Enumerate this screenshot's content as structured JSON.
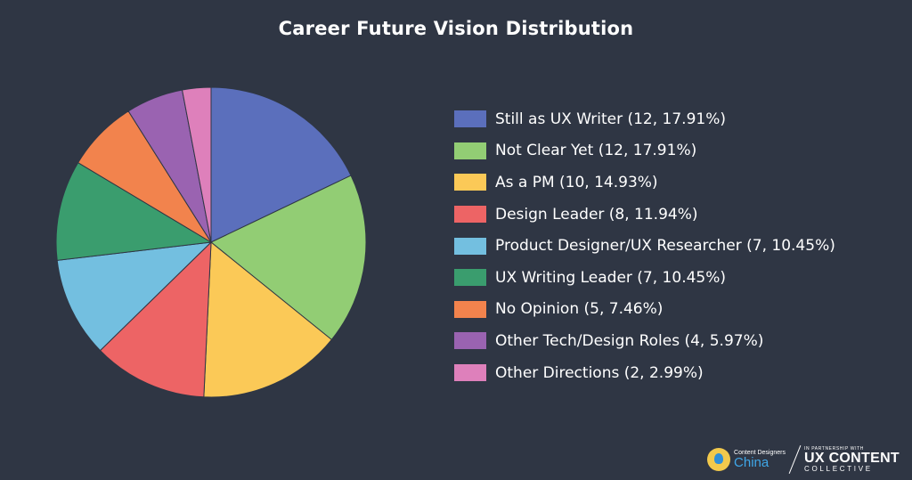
{
  "chart_data": {
    "type": "pie",
    "title": "Career Future Vision Distribution",
    "categories": [
      "Still as UX Writer",
      "Not Clear Yet",
      "As a PM",
      "Design Leader",
      "Product Designer/UX Researcher",
      "UX Writing Leader",
      "No Opinion",
      "Other Tech/Design Roles",
      "Other Directions"
    ],
    "values": [
      12,
      12,
      10,
      8,
      7,
      7,
      5,
      4,
      2
    ],
    "percentages": [
      17.91,
      17.91,
      14.93,
      11.94,
      10.45,
      10.45,
      7.46,
      5.97,
      2.99
    ],
    "colors": [
      "#5b6fbc",
      "#92cd74",
      "#fbc957",
      "#ed6465",
      "#73bfe0",
      "#3a9d6e",
      "#f2834d",
      "#9a63b1",
      "#de80bb"
    ],
    "legend_labels": [
      "Still as UX Writer (12, 17.91%)",
      "Not Clear Yet (12, 17.91%)",
      "As a PM (10, 14.93%)",
      "Design Leader (8, 11.94%)",
      "Product Designer/UX Researcher (7, 10.45%)",
      "UX Writing Leader (7, 10.45%)",
      "No Opinion (5, 7.46%)",
      "Other Tech/Design Roles (4, 5.97%)",
      "Other Directions (2, 2.99%)"
    ],
    "legend_position": "right",
    "start_angle": "top",
    "direction": "clockwise"
  },
  "branding": {
    "cdc_small": "Content Designers",
    "cdc_big": "China",
    "cdc_icon": "pen-nib-icon",
    "uxcc_small": "IN PARTNERSHIP WITH",
    "uxcc_big": "UX CONTENT",
    "uxcc_mid": "COLLECTIVE"
  }
}
